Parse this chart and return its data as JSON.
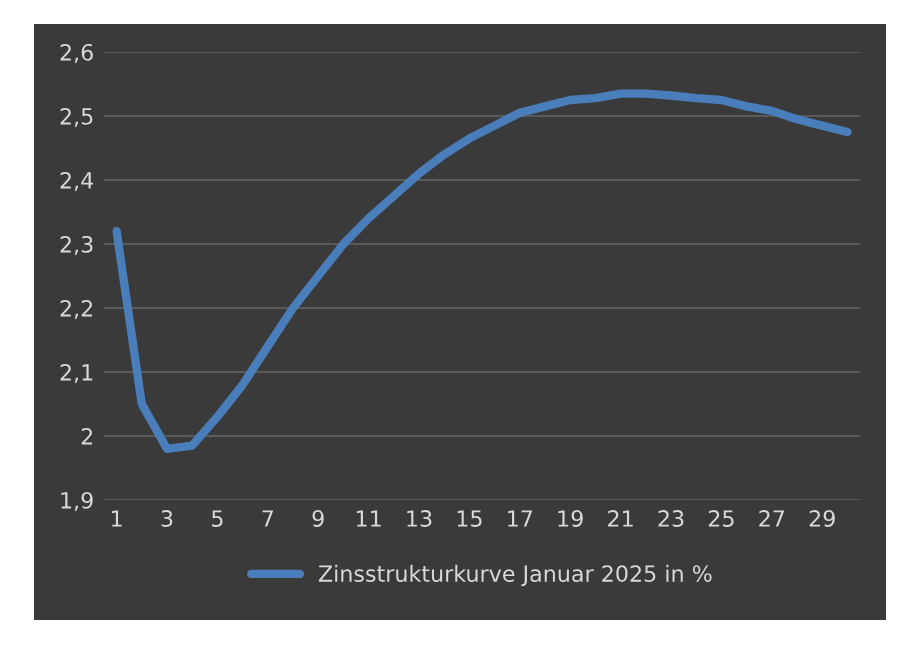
{
  "chart_data": {
    "type": "line",
    "categories": [
      "1",
      null,
      "3",
      null,
      "5",
      null,
      "7",
      null,
      "9",
      null,
      "11",
      null,
      "13",
      null,
      "15",
      null,
      "17",
      null,
      "19",
      null,
      "21",
      null,
      "23",
      null,
      "25",
      null,
      "27",
      null,
      "29",
      null
    ],
    "series": [
      {
        "name": "Zinsstrukturkurve Januar 2025 in %",
        "color": "#4a7ebb",
        "values": [
          2.32,
          2.05,
          1.98,
          1.985,
          2.03,
          2.08,
          2.14,
          2.2,
          2.25,
          2.3,
          2.34,
          2.375,
          2.41,
          2.44,
          2.465,
          2.485,
          2.505,
          2.515,
          2.525,
          2.528,
          2.535,
          2.535,
          2.532,
          2.528,
          2.525,
          2.515,
          2.508,
          2.495,
          2.485,
          2.475
        ]
      }
    ],
    "ylim": [
      1.9,
      2.6
    ],
    "yticks": [
      {
        "value": 1.9,
        "label": "1,9"
      },
      2,
      {
        "value": 2.1,
        "label": "2,1"
      },
      {
        "value": 2.2,
        "label": "2,2"
      },
      {
        "value": 2.3,
        "label": "2,3"
      },
      {
        "value": 2.4,
        "label": "2,4"
      },
      {
        "value": 2.5,
        "label": "2,5"
      },
      {
        "value": 2.6,
        "label": "2,6"
      }
    ],
    "grid": "y",
    "legend": "bottom",
    "marker": "none",
    "line_style": "solid"
  }
}
